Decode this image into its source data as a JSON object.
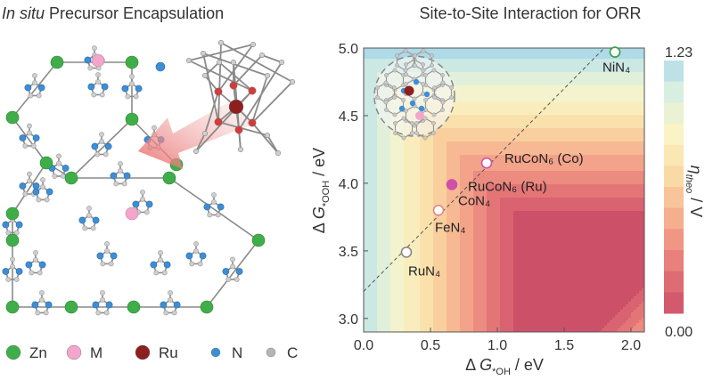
{
  "left_panel": {
    "title_italic": "In situ",
    "title_rest": " Precursor Encapsulation",
    "legend": [
      {
        "label": "Zn",
        "color": "#3fae49"
      },
      {
        "label": "M",
        "color": "#f3a6cc"
      },
      {
        "label": "Ru",
        "color": "#8e1f1f"
      },
      {
        "label": "N",
        "color": "#3c8fd6"
      },
      {
        "label": "C",
        "color": "#b5b5b5"
      }
    ]
  },
  "chart_data": {
    "type": "scatter",
    "title": "Site-to-Site Interaction for ORR",
    "xlim": [
      0.0,
      2.1
    ],
    "ylim": [
      2.9,
      5.0
    ],
    "x_ticks": [
      "0.0",
      "0.5",
      "1.0",
      "1.5",
      "2.0"
    ],
    "y_ticks": [
      "3.0",
      "3.5",
      "4.0",
      "4.5",
      "5.0"
    ],
    "colorbar": {
      "max_label": "1.23",
      "min_label": "0.00",
      "range": [
        0.0,
        1.23
      ]
    },
    "points": [
      {
        "label": "RuN₄",
        "x": 0.32,
        "y": 3.49,
        "fill": "#ffffff",
        "stroke": "#888888",
        "label_dx": 2,
        "label_dy": 26
      },
      {
        "label": "FeN₄",
        "x": 0.56,
        "y": 3.8,
        "fill": "#ffffff",
        "stroke": "#e08a8a",
        "label_dx": -4,
        "label_dy": 24
      },
      {
        "label": "CoN₄",
        "x": 0.56,
        "y": 3.8,
        "fill": "none",
        "stroke": "none",
        "label_dx": 22,
        "label_dy": -6
      },
      {
        "label": "RuCoN₆ (Ru)",
        "x": 0.66,
        "y": 3.99,
        "fill": "#d14fa9",
        "stroke": "#d14fa9",
        "label_dx": 18,
        "label_dy": 7
      },
      {
        "label": "RuCoN₆ (Co)",
        "x": 0.92,
        "y": 4.15,
        "fill": "#ffffff",
        "stroke": "#d14fa9",
        "label_dx": 20,
        "label_dy": 0
      },
      {
        "label": "NiN₄",
        "x": 1.88,
        "y": 4.97,
        "fill": "#ffffff",
        "stroke": "#2f9e44",
        "label_dx": -14,
        "label_dy": 22
      }
    ],
    "scaling_line": {
      "slope": 1.0,
      "intercept": 3.2
    },
    "volcano_peak": {
      "x": 1.23,
      "y": 3.69
    }
  }
}
